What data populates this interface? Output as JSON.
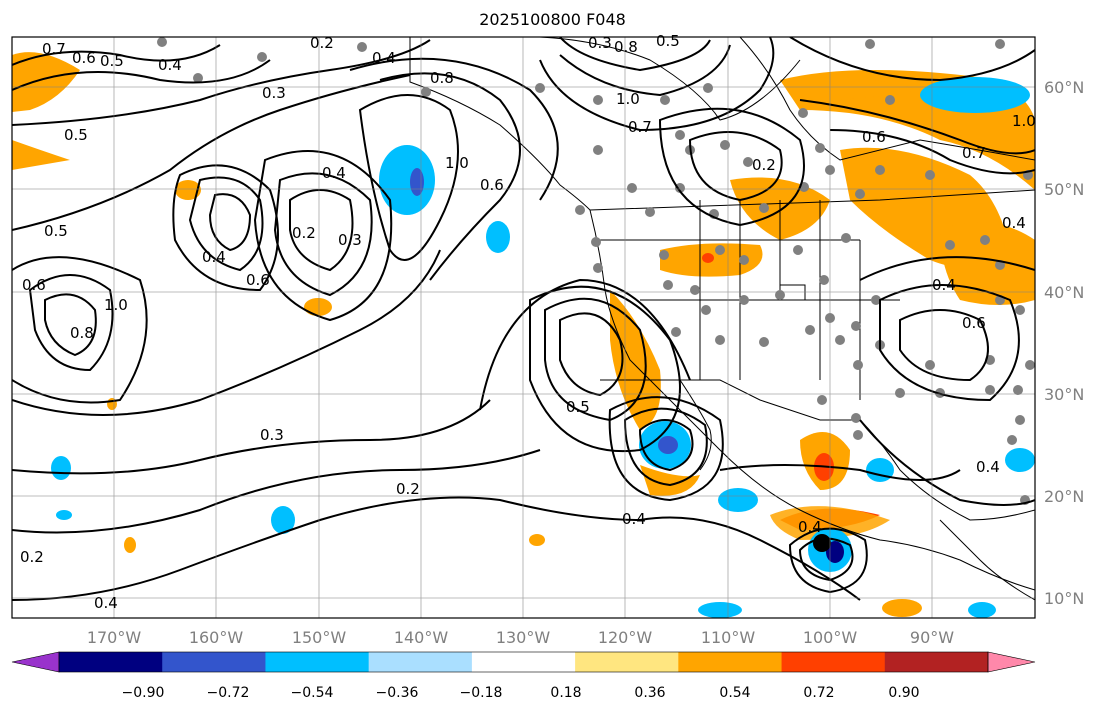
{
  "title": "2025100800 F048",
  "lat_labels": [
    "60°N",
    "50°N",
    "40°N",
    "30°N",
    "20°N",
    "10°N"
  ],
  "lon_labels": [
    "170°W",
    "160°W",
    "150°W",
    "140°W",
    "130°W",
    "120°W",
    "110°W",
    "100°W",
    "90°W"
  ],
  "colorbar": {
    "ticks": [
      "−0.90",
      "−0.72",
      "−0.54",
      "−0.36",
      "−0.18",
      "0.18",
      "0.36",
      "0.54",
      "0.72",
      "0.90"
    ],
    "colors": [
      "#9933cc",
      "#000080",
      "#3355cc",
      "#00bfff",
      "#aadfff",
      "#ffffff",
      "#ffe680",
      "#ffa500",
      "#ff4000",
      "#b22222",
      "#ff88aa"
    ]
  },
  "contour_labels": [
    "0.7",
    "0.6",
    "0.5",
    "0.4",
    "0.3",
    "0.2",
    "0.4",
    "0.8",
    "1.0",
    "0.5",
    "0.4",
    "0.3",
    "0.2",
    "0.4",
    "0.6",
    "0.5",
    "0.6",
    "0.8",
    "1.0",
    "0.3",
    "0.2",
    "0.4",
    "0.2",
    "0.5",
    "0.8",
    "1.0",
    "0.7",
    "0.2",
    "0.6",
    "0.7",
    "0.4",
    "0.4",
    "0.6",
    "0.3",
    "0.4",
    "0.4",
    "1.0",
    "0.6",
    "0.5",
    "0.4"
  ]
}
